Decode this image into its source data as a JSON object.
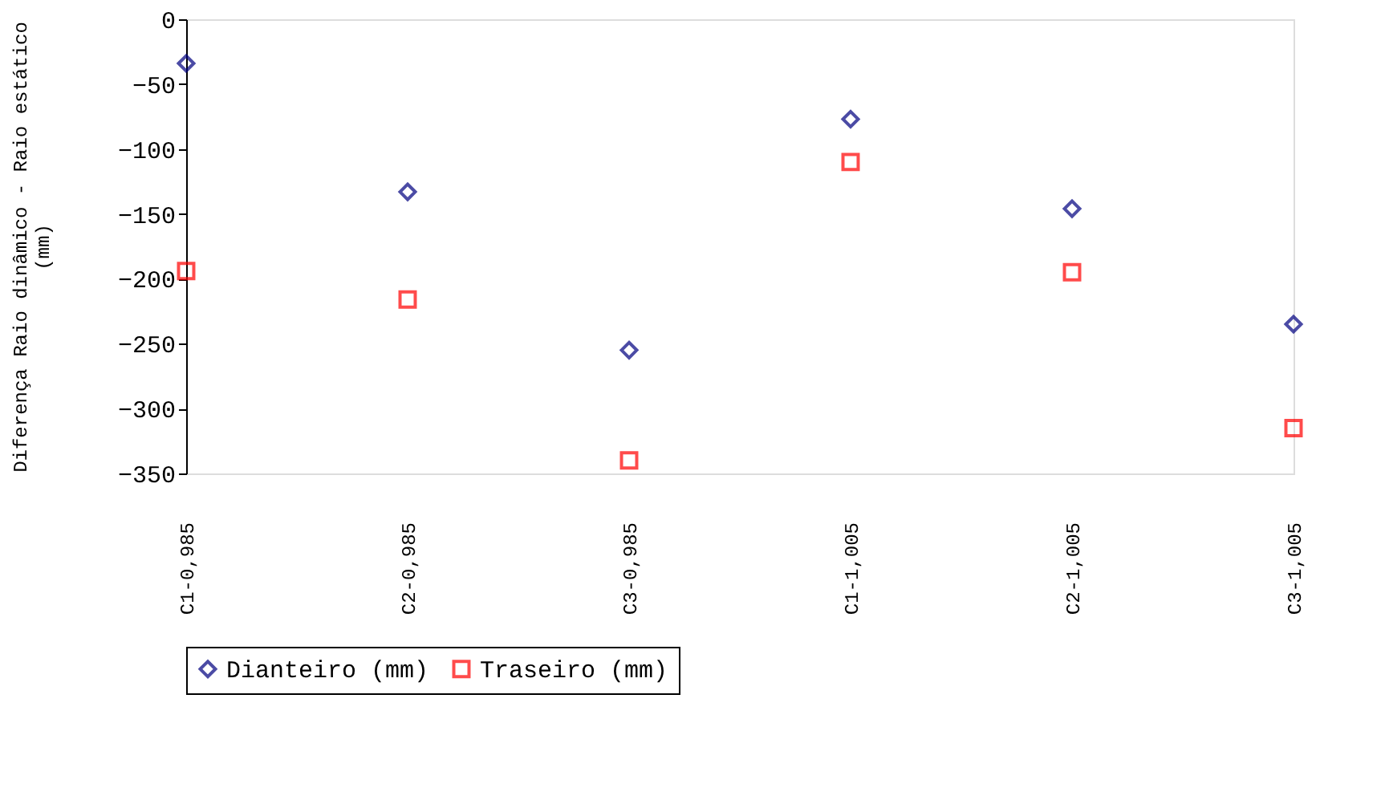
{
  "chart_data": {
    "type": "scatter",
    "ylabel": "Diferença Raio dinâmico - Raio estático\n(mm)",
    "categories": [
      "C1-0,985",
      "C2-0,985",
      "C3-0,985",
      "C1-1,005",
      "C2-1,005",
      "C3-1,005"
    ],
    "series": [
      {
        "name": "Dianteiro (mm)",
        "color": "#000080",
        "marker": "diamond",
        "values": [
          -34,
          -133,
          -255,
          -77,
          -146,
          -235
        ]
      },
      {
        "name": "Traseiro (mm)",
        "color": "#ff0000",
        "marker": "square",
        "values": [
          -194,
          -216,
          -340,
          -110,
          -195,
          -315
        ]
      }
    ],
    "ylim": [
      -350,
      0
    ],
    "yticks": [
      -350,
      -300,
      -250,
      -200,
      -150,
      -100,
      -50,
      0
    ],
    "grid": false,
    "legend": "bottom"
  }
}
